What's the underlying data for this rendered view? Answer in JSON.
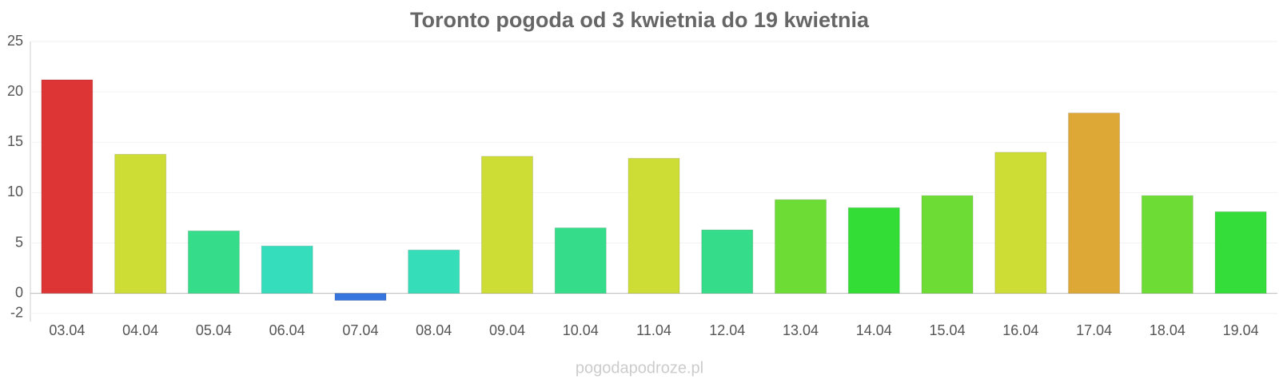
{
  "chart_data": {
    "type": "bar",
    "title": "Toronto pogoda od 3 kwietnia do 19 kwietnia",
    "categories": [
      "03.04",
      "04.04",
      "05.04",
      "06.04",
      "07.04",
      "08.04",
      "09.04",
      "10.04",
      "11.04",
      "12.04",
      "13.04",
      "14.04",
      "15.04",
      "16.04",
      "17.04",
      "18.04",
      "19.04"
    ],
    "values": [
      21.2,
      13.8,
      6.2,
      4.7,
      -0.7,
      4.3,
      13.6,
      6.5,
      13.4,
      6.3,
      9.3,
      8.5,
      9.7,
      14.0,
      17.9,
      9.7,
      8.1
    ],
    "colors": [
      "#dd3535",
      "#cedd35",
      "#35dd8a",
      "#35ddbd",
      "#3575dd",
      "#35ddb8",
      "#cedd35",
      "#35dd8a",
      "#cedd35",
      "#35dd8a",
      "#6ddd35",
      "#33dd35",
      "#6ddd35",
      "#cedd35",
      "#dda835",
      "#6ddd35",
      "#35dd3a"
    ],
    "ylim": [
      -2.8,
      25
    ],
    "yticks": [
      -2,
      0,
      5,
      10,
      15,
      20,
      25
    ],
    "grid": true,
    "watermark": "pogodapodroze.pl"
  }
}
